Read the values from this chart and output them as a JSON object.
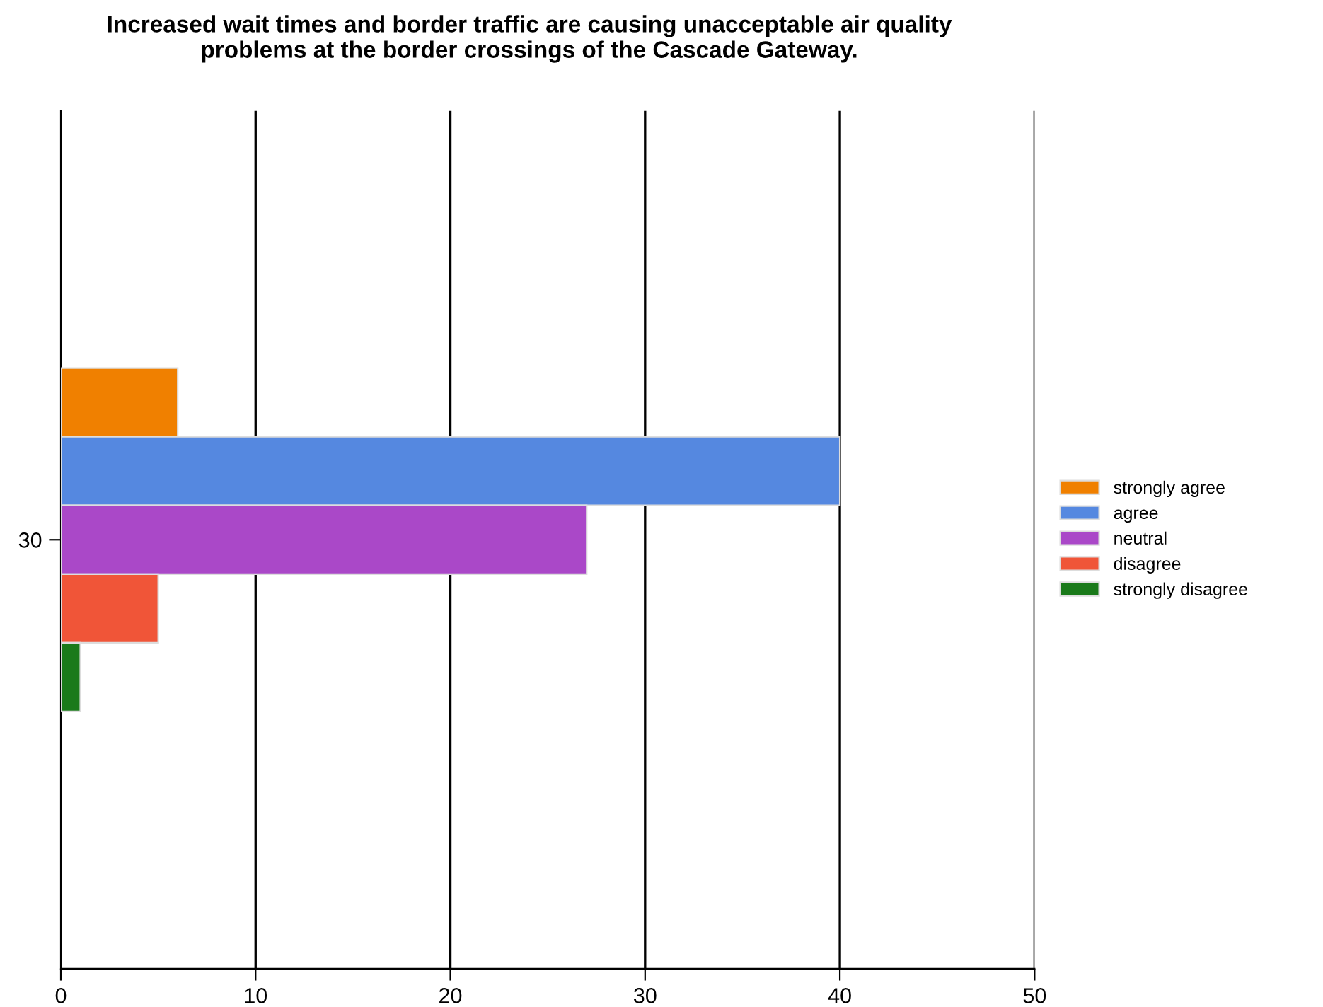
{
  "chart_data": {
    "type": "bar",
    "orientation": "horizontal",
    "title": "Increased wait times and border traffic are causing unacceptable air quality\nproblems at the border crossings of the Cascade Gateway.",
    "categories": [
      "30"
    ],
    "series": [
      {
        "name": "strongly agree",
        "color": "#f08000",
        "values": [
          6
        ]
      },
      {
        "name": "agree",
        "color": "#5588e0",
        "values": [
          40
        ]
      },
      {
        "name": "neutral",
        "color": "#aa48c8",
        "values": [
          27
        ]
      },
      {
        "name": "disagree",
        "color": "#f05538",
        "values": [
          5
        ]
      },
      {
        "name": "strongly disagree",
        "color": "#1a7a1a",
        "values": [
          1
        ]
      }
    ],
    "xlim": [
      0,
      50
    ],
    "xticks": [
      0,
      10,
      20,
      30,
      40,
      50
    ],
    "grid": "x",
    "legend": "right"
  }
}
